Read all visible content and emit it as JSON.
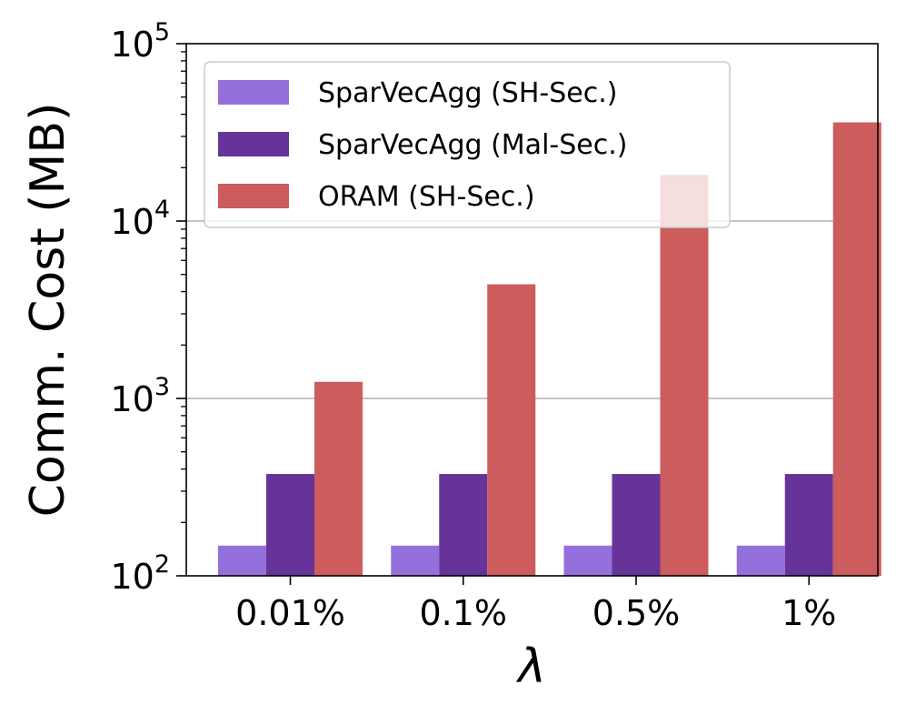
{
  "chart_data": {
    "type": "bar",
    "scale": "log",
    "title": "",
    "xlabel": "λ",
    "ylabel": "Comm. Cost (MB)",
    "ylim": [
      100,
      100000
    ],
    "categories": [
      "0.01%",
      "0.1%",
      "0.5%",
      "1%"
    ],
    "series": [
      {
        "name": "SparVecAgg (SH-Sec.)",
        "color": "#9370DB",
        "values": [
          148,
          148,
          148,
          148
        ]
      },
      {
        "name": "SparVecAgg (Mal-Sec.)",
        "color": "#663399",
        "values": [
          375,
          375,
          375,
          375
        ]
      },
      {
        "name": "ORAM (SH-Sec.)",
        "color": "#CD5C5C",
        "values": [
          1240,
          4400,
          18200,
          36000
        ]
      }
    ],
    "y_ticks": [
      {
        "value": 100,
        "base": "10",
        "exp": "2"
      },
      {
        "value": 1000,
        "base": "10",
        "exp": "3"
      },
      {
        "value": 10000,
        "base": "10",
        "exp": "4"
      },
      {
        "value": 100000,
        "base": "10",
        "exp": "5"
      }
    ],
    "grid": "y-major",
    "legend_position": "upper-left"
  }
}
